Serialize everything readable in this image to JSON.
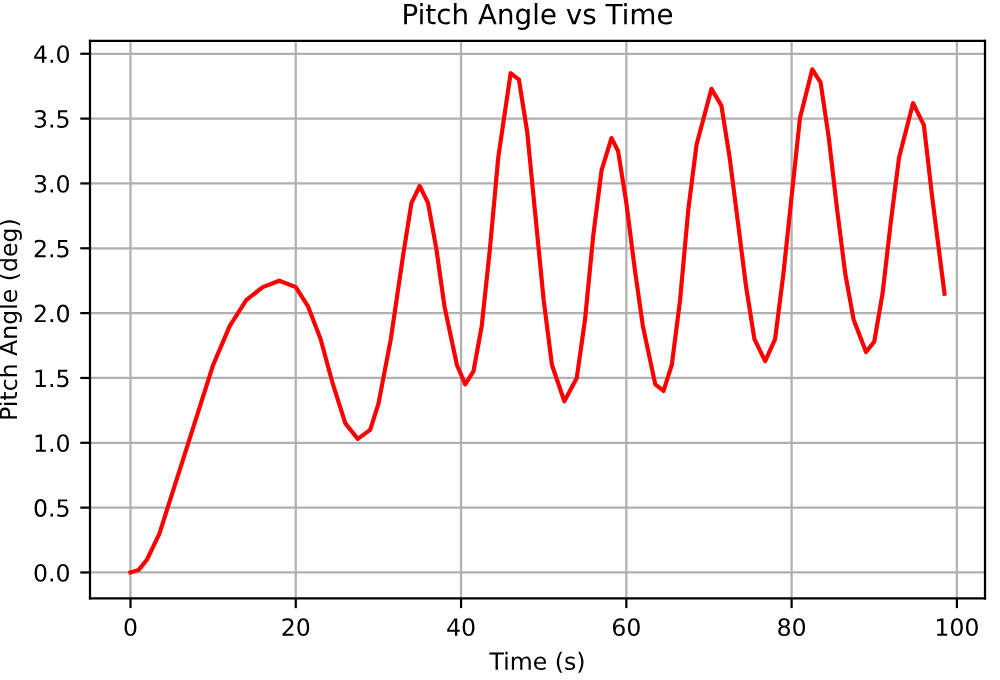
{
  "chart_data": {
    "type": "line",
    "title": "Pitch Angle vs Time",
    "xlabel": "Time (s)",
    "ylabel": "Pitch Angle (deg)",
    "x": [
      0,
      1,
      2,
      3.5,
      5,
      6.5,
      8,
      10,
      12,
      14,
      16,
      18,
      20,
      21.5,
      23,
      24.5,
      26,
      27.5,
      29,
      30,
      31.5,
      33,
      34,
      35,
      36,
      37,
      38,
      39.5,
      40.5,
      41.5,
      42.5,
      43.5,
      44.5,
      46,
      47,
      48,
      49,
      50,
      51,
      52.5,
      54,
      55,
      56,
      57,
      58.2,
      59,
      60,
      61,
      62,
      63.5,
      64.5,
      65.5,
      66.5,
      67.5,
      68.5,
      70.3,
      71.5,
      72.5,
      73.5,
      74.5,
      75.5,
      76.8,
      78,
      79,
      80,
      81,
      82.5,
      83.5,
      84.5,
      85.5,
      86.5,
      87.5,
      89,
      90,
      91,
      92,
      93,
      94.7,
      96,
      97,
      98.5
    ],
    "series": [
      {
        "color": "#ff0000",
        "values": [
          0,
          0.02,
          0.1,
          0.3,
          0.6,
          0.9,
          1.2,
          1.6,
          1.9,
          2.1,
          2.2,
          2.25,
          2.2,
          2.05,
          1.8,
          1.45,
          1.15,
          1.03,
          1.1,
          1.3,
          1.8,
          2.45,
          2.85,
          2.98,
          2.85,
          2.5,
          2.05,
          1.6,
          1.45,
          1.55,
          1.9,
          2.5,
          3.2,
          3.85,
          3.8,
          3.4,
          2.75,
          2.1,
          1.6,
          1.32,
          1.5,
          1.95,
          2.6,
          3.1,
          3.35,
          3.25,
          2.85,
          2.35,
          1.9,
          1.45,
          1.4,
          1.6,
          2.1,
          2.8,
          3.3,
          3.73,
          3.6,
          3.2,
          2.7,
          2.2,
          1.8,
          1.63,
          1.8,
          2.3,
          2.9,
          3.5,
          3.88,
          3.78,
          3.35,
          2.8,
          2.3,
          1.95,
          1.7,
          1.78,
          2.15,
          2.7,
          3.2,
          3.62,
          3.45,
          2.9,
          2.15
        ]
      }
    ],
    "xlim": [
      -4.9,
      103.4
    ],
    "xticks": [
      0,
      20,
      40,
      60,
      80,
      100
    ],
    "ylim": [
      -0.2,
      4.1
    ],
    "yticks": [
      {
        "value": 0,
        "label": "0.0"
      },
      {
        "value": 0.5,
        "label": "0.5"
      },
      {
        "value": 1,
        "label": "1.0"
      },
      {
        "value": 1.5,
        "label": "1.5"
      },
      {
        "value": 2,
        "label": "2.0"
      },
      {
        "value": 2.5,
        "label": "2.5"
      },
      {
        "value": 3,
        "label": "3.0"
      },
      {
        "value": 3.5,
        "label": "3.5"
      },
      {
        "value": 4,
        "label": "4.0"
      }
    ],
    "grid": true,
    "marker": "none",
    "line_style": "solid"
  }
}
